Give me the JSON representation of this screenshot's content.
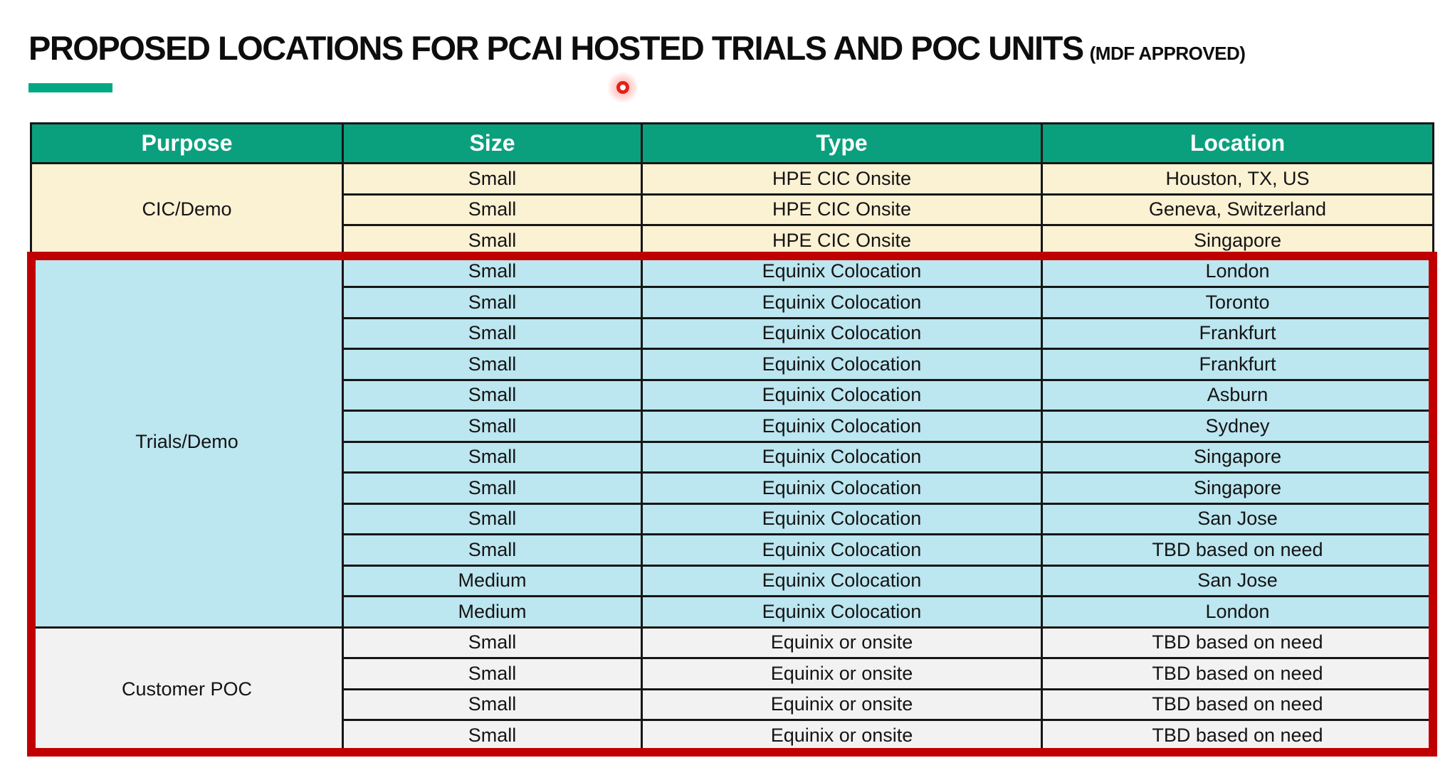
{
  "title": {
    "main": "PROPOSED LOCATIONS FOR PCAI HOSTED TRIALS AND POC UNITS",
    "suffix": "(MDF APPROVED)"
  },
  "colors": {
    "header_green": "#0BA07D",
    "accent_green_dash": "#01A982",
    "highlight_red": "#C00000",
    "laser_dot_red": "#E32019",
    "section_cic_bg": "#FBF1D3",
    "section_trials_bg": "#BCE6F0",
    "section_poc_bg": "#F2F2F2"
  },
  "table": {
    "columns": [
      "Purpose",
      "Size",
      "Type",
      "Location"
    ],
    "sections": [
      {
        "purpose": "CIC/Demo",
        "bg": "#FBF1D3",
        "rows": [
          {
            "size": "Small",
            "type": "HPE CIC Onsite",
            "location": "Houston, TX, US"
          },
          {
            "size": "Small",
            "type": "HPE CIC Onsite",
            "location": "Geneva, Switzerland"
          },
          {
            "size": "Small",
            "type": "HPE CIC Onsite",
            "location": "Singapore"
          }
        ]
      },
      {
        "purpose": "Trials/Demo",
        "bg": "#BCE6F0",
        "rows": [
          {
            "size": "Small",
            "type": "Equinix Colocation",
            "location": "London"
          },
          {
            "size": "Small",
            "type": "Equinix Colocation",
            "location": "Toronto"
          },
          {
            "size": "Small",
            "type": "Equinix Colocation",
            "location": "Frankfurt"
          },
          {
            "size": "Small",
            "type": "Equinix Colocation",
            "location": "Frankfurt"
          },
          {
            "size": "Small",
            "type": "Equinix Colocation",
            "location": "Asburn"
          },
          {
            "size": "Small",
            "type": "Equinix Colocation",
            "location": "Sydney"
          },
          {
            "size": "Small",
            "type": "Equinix Colocation",
            "location": "Singapore"
          },
          {
            "size": "Small",
            "type": "Equinix Colocation",
            "location": "Singapore"
          },
          {
            "size": "Small",
            "type": "Equinix Colocation",
            "location": "San Jose"
          },
          {
            "size": "Small",
            "type": "Equinix Colocation",
            "location": "TBD based on need"
          },
          {
            "size": "Medium",
            "type": "Equinix Colocation",
            "location": "San Jose"
          },
          {
            "size": "Medium",
            "type": "Equinix Colocation",
            "location": "London"
          }
        ]
      },
      {
        "purpose": "Customer POC",
        "bg": "#F2F2F2",
        "rows": [
          {
            "size": "Small",
            "type": "Equinix or onsite",
            "location": "TBD based on need"
          },
          {
            "size": "Small",
            "type": "Equinix or onsite",
            "location": "TBD based on need"
          },
          {
            "size": "Small",
            "type": "Equinix or onsite",
            "location": "TBD based on need"
          },
          {
            "size": "Small",
            "type": "Equinix or onsite",
            "location": "TBD based on need"
          }
        ]
      }
    ]
  }
}
